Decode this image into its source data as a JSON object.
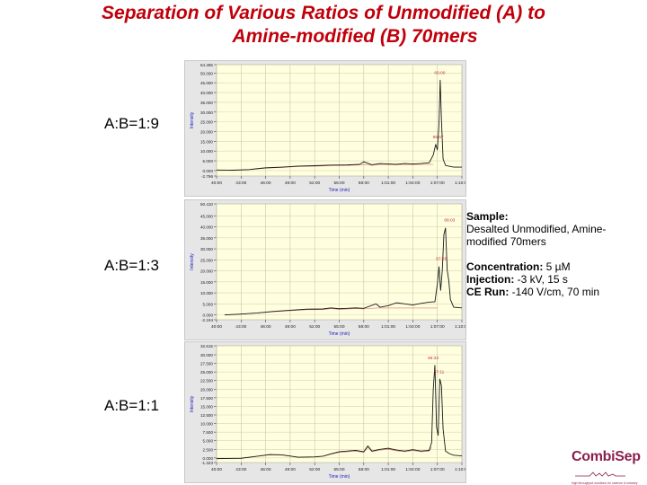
{
  "title": {
    "line1": "Separation of Various Ratios of Unmodified (A) to",
    "line2": "Amine-modified (B) 70mers"
  },
  "colors": {
    "title": "#c0000b",
    "plot_bg": "#ffffe0",
    "frame_bg": "#e6e6e6",
    "trace": "#1a1a1a",
    "baseline": "#d04040",
    "peak_label": "#c03030",
    "axis_title": "#2020c0",
    "logo": "#8b1f4d"
  },
  "ratios": [
    "A:B=1:9",
    "A:B=1:3",
    "A:B=1:1"
  ],
  "info": {
    "sample_label": "Sample:",
    "sample_value": "Desalted Unmodified, Amine-modified 70mers",
    "concentration_label": "Concentration:",
    "concentration_value": " 5 µM",
    "injection_label": "Injection:",
    "injection_value": " -3 kV, 15 s",
    "ce_run_label": "CE Run:",
    "ce_run_value": " -140 V/cm, 70 min"
  },
  "logo": {
    "name": "CombiSep",
    "tagline": "high throughput solutions for science & industry"
  },
  "chart_data": [
    {
      "type": "line",
      "title": "A:B=1:9",
      "xlabel": "Time (min)",
      "ylabel": "Intensity",
      "x_ticks": [
        "40:00",
        "43:00",
        "46:00",
        "49:00",
        "52:00",
        "55:00",
        "58:00",
        "1:01:00",
        "1:04:00",
        "1:07:00",
        "1:10:00"
      ],
      "xlim": [
        40,
        70
      ],
      "y_ticks": [
        "-2.796",
        "0.000",
        "5.000",
        "10.000",
        "15.000",
        "20.000",
        "25.000",
        "30.000",
        "35.000",
        "40.000",
        "45.000",
        "50.000",
        "54.285"
      ],
      "ylim": [
        -2.796,
        54.285
      ],
      "grid": true,
      "peak_labels": [
        {
          "text": "66:00",
          "x": 67.3,
          "y": 49.5
        },
        {
          "text": "65:57",
          "x": 67.1,
          "y": 16.5
        }
      ],
      "series": [
        {
          "name": "Intensity",
          "x": [
            40,
            42,
            44,
            45,
            46,
            48,
            50,
            52,
            54,
            56,
            57.5,
            58,
            59,
            60,
            61,
            62,
            63,
            64,
            65,
            66,
            66.5,
            66.8,
            67.0,
            67.2,
            67.35,
            67.5,
            67.7,
            68,
            68.5,
            69,
            70
          ],
          "y": [
            0.3,
            0.2,
            0.5,
            1.0,
            1.4,
            1.8,
            2.3,
            2.5,
            2.8,
            2.9,
            3.2,
            4.5,
            3.0,
            3.6,
            3.4,
            3.2,
            3.6,
            3.4,
            3.6,
            4.0,
            8.0,
            13.5,
            10.5,
            24.0,
            46.5,
            26.0,
            6.0,
            2.6,
            2.2,
            1.8,
            1.8
          ]
        }
      ]
    },
    {
      "type": "line",
      "title": "A:B=1:3",
      "xlabel": "Time (min)",
      "ylabel": "Intensity",
      "x_ticks": [
        "40:00",
        "43:00",
        "46:00",
        "49:00",
        "52:00",
        "55:00",
        "58:00",
        "1:01:00",
        "1:04:00",
        "1:07:00",
        "1:10:00"
      ],
      "xlim": [
        40,
        70
      ],
      "y_ticks": [
        "-2.194",
        "0.000",
        "5.000",
        "10.000",
        "15.000",
        "20.000",
        "25.000",
        "30.000",
        "35.000",
        "40.000",
        "45.000",
        "50.410"
      ],
      "ylim": [
        -2.194,
        50.41
      ],
      "grid": true,
      "peak_labels": [
        {
          "text": "68:03",
          "x": 68.5,
          "y": 42.5
        },
        {
          "text": "67:58",
          "x": 67.5,
          "y": 25.0
        }
      ],
      "series": [
        {
          "name": "Intensity",
          "x": [
            41,
            43,
            45,
            47,
            49,
            51,
            53,
            54,
            55,
            57,
            58,
            59.5,
            60,
            61,
            62,
            63,
            64,
            65,
            66,
            66.7,
            67,
            67.2,
            67.4,
            67.6,
            67.8,
            68.0,
            68.2,
            68.4,
            68.6,
            69,
            70
          ],
          "y": [
            0.0,
            0.4,
            0.9,
            1.6,
            2.1,
            2.6,
            2.7,
            3.2,
            2.8,
            3.2,
            3.0,
            5.0,
            3.5,
            4.2,
            5.5,
            5.0,
            4.5,
            5.2,
            5.8,
            6.0,
            14.0,
            22.0,
            11.0,
            20.0,
            36.5,
            39.5,
            20.5,
            15.5,
            7.0,
            3.5,
            3.2
          ]
        }
      ]
    },
    {
      "type": "line",
      "title": "A:B=1:1",
      "xlabel": "Time (min)",
      "ylabel": "Intensity",
      "x_ticks": [
        "40:00",
        "43:00",
        "46:00",
        "49:00",
        "52:00",
        "55:00",
        "58:00",
        "1:01:00",
        "1:04:00",
        "1:07:00",
        "1:10:00"
      ],
      "xlim": [
        40,
        70
      ],
      "y_ticks": [
        "-1.343",
        "0.000",
        "2.500",
        "5.000",
        "7.500",
        "10.000",
        "12.500",
        "15.000",
        "17.500",
        "20.000",
        "22.500",
        "25.000",
        "27.500",
        "30.000",
        "32.615"
      ],
      "ylim": [
        -1.343,
        32.615
      ],
      "grid": true,
      "peak_labels": [
        {
          "text": "66:32",
          "x": 66.5,
          "y": 28.7
        },
        {
          "text": "67:11",
          "x": 67.2,
          "y": 24.6
        }
      ],
      "series": [
        {
          "name": "Intensity",
          "x": [
            40,
            43,
            45,
            46.5,
            48,
            50,
            52,
            53,
            54,
            55,
            56,
            57,
            58,
            58.5,
            59,
            60,
            61,
            62,
            63,
            64,
            65,
            66,
            66.3,
            66.5,
            66.7,
            66.9,
            67.1,
            67.3,
            67.5,
            67.7,
            68,
            68.5,
            69,
            70
          ],
          "y": [
            -0.2,
            -0.1,
            0.5,
            1.0,
            0.9,
            0.2,
            0.3,
            0.5,
            1.2,
            1.8,
            2.0,
            2.2,
            1.8,
            3.5,
            2.0,
            2.5,
            2.8,
            2.3,
            2.0,
            2.4,
            2.0,
            2.2,
            4.5,
            20.0,
            27.0,
            9.0,
            6.5,
            23.0,
            21.0,
            8.5,
            2.0,
            1.2,
            0.8,
            0.6
          ]
        }
      ]
    }
  ]
}
